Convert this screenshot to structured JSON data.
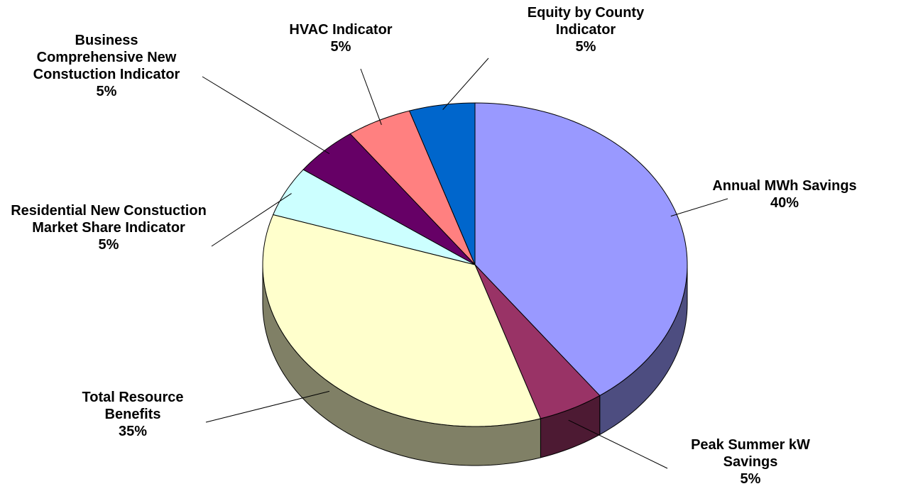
{
  "chart_data": {
    "type": "pie",
    "three_d": true,
    "categories": [
      "Annual MWh Savings",
      "Peak Summer kW Savings",
      "Total Resource Benefits",
      "Residential New Constuction Market Share Indicator",
      "Business Comprehensive New Constuction Indicator",
      "HVAC Indicator",
      "Equity by County Indicator"
    ],
    "values": [
      40,
      5,
      35,
      5,
      5,
      5,
      5
    ],
    "value_labels": [
      "40%",
      "5%",
      "35%",
      "5%",
      "5%",
      "5%",
      "5%"
    ],
    "colors": [
      "#9999ff",
      "#993366",
      "#ffffcc",
      "#ccffff",
      "#660066",
      "#ff8080",
      "#0066cc"
    ]
  }
}
